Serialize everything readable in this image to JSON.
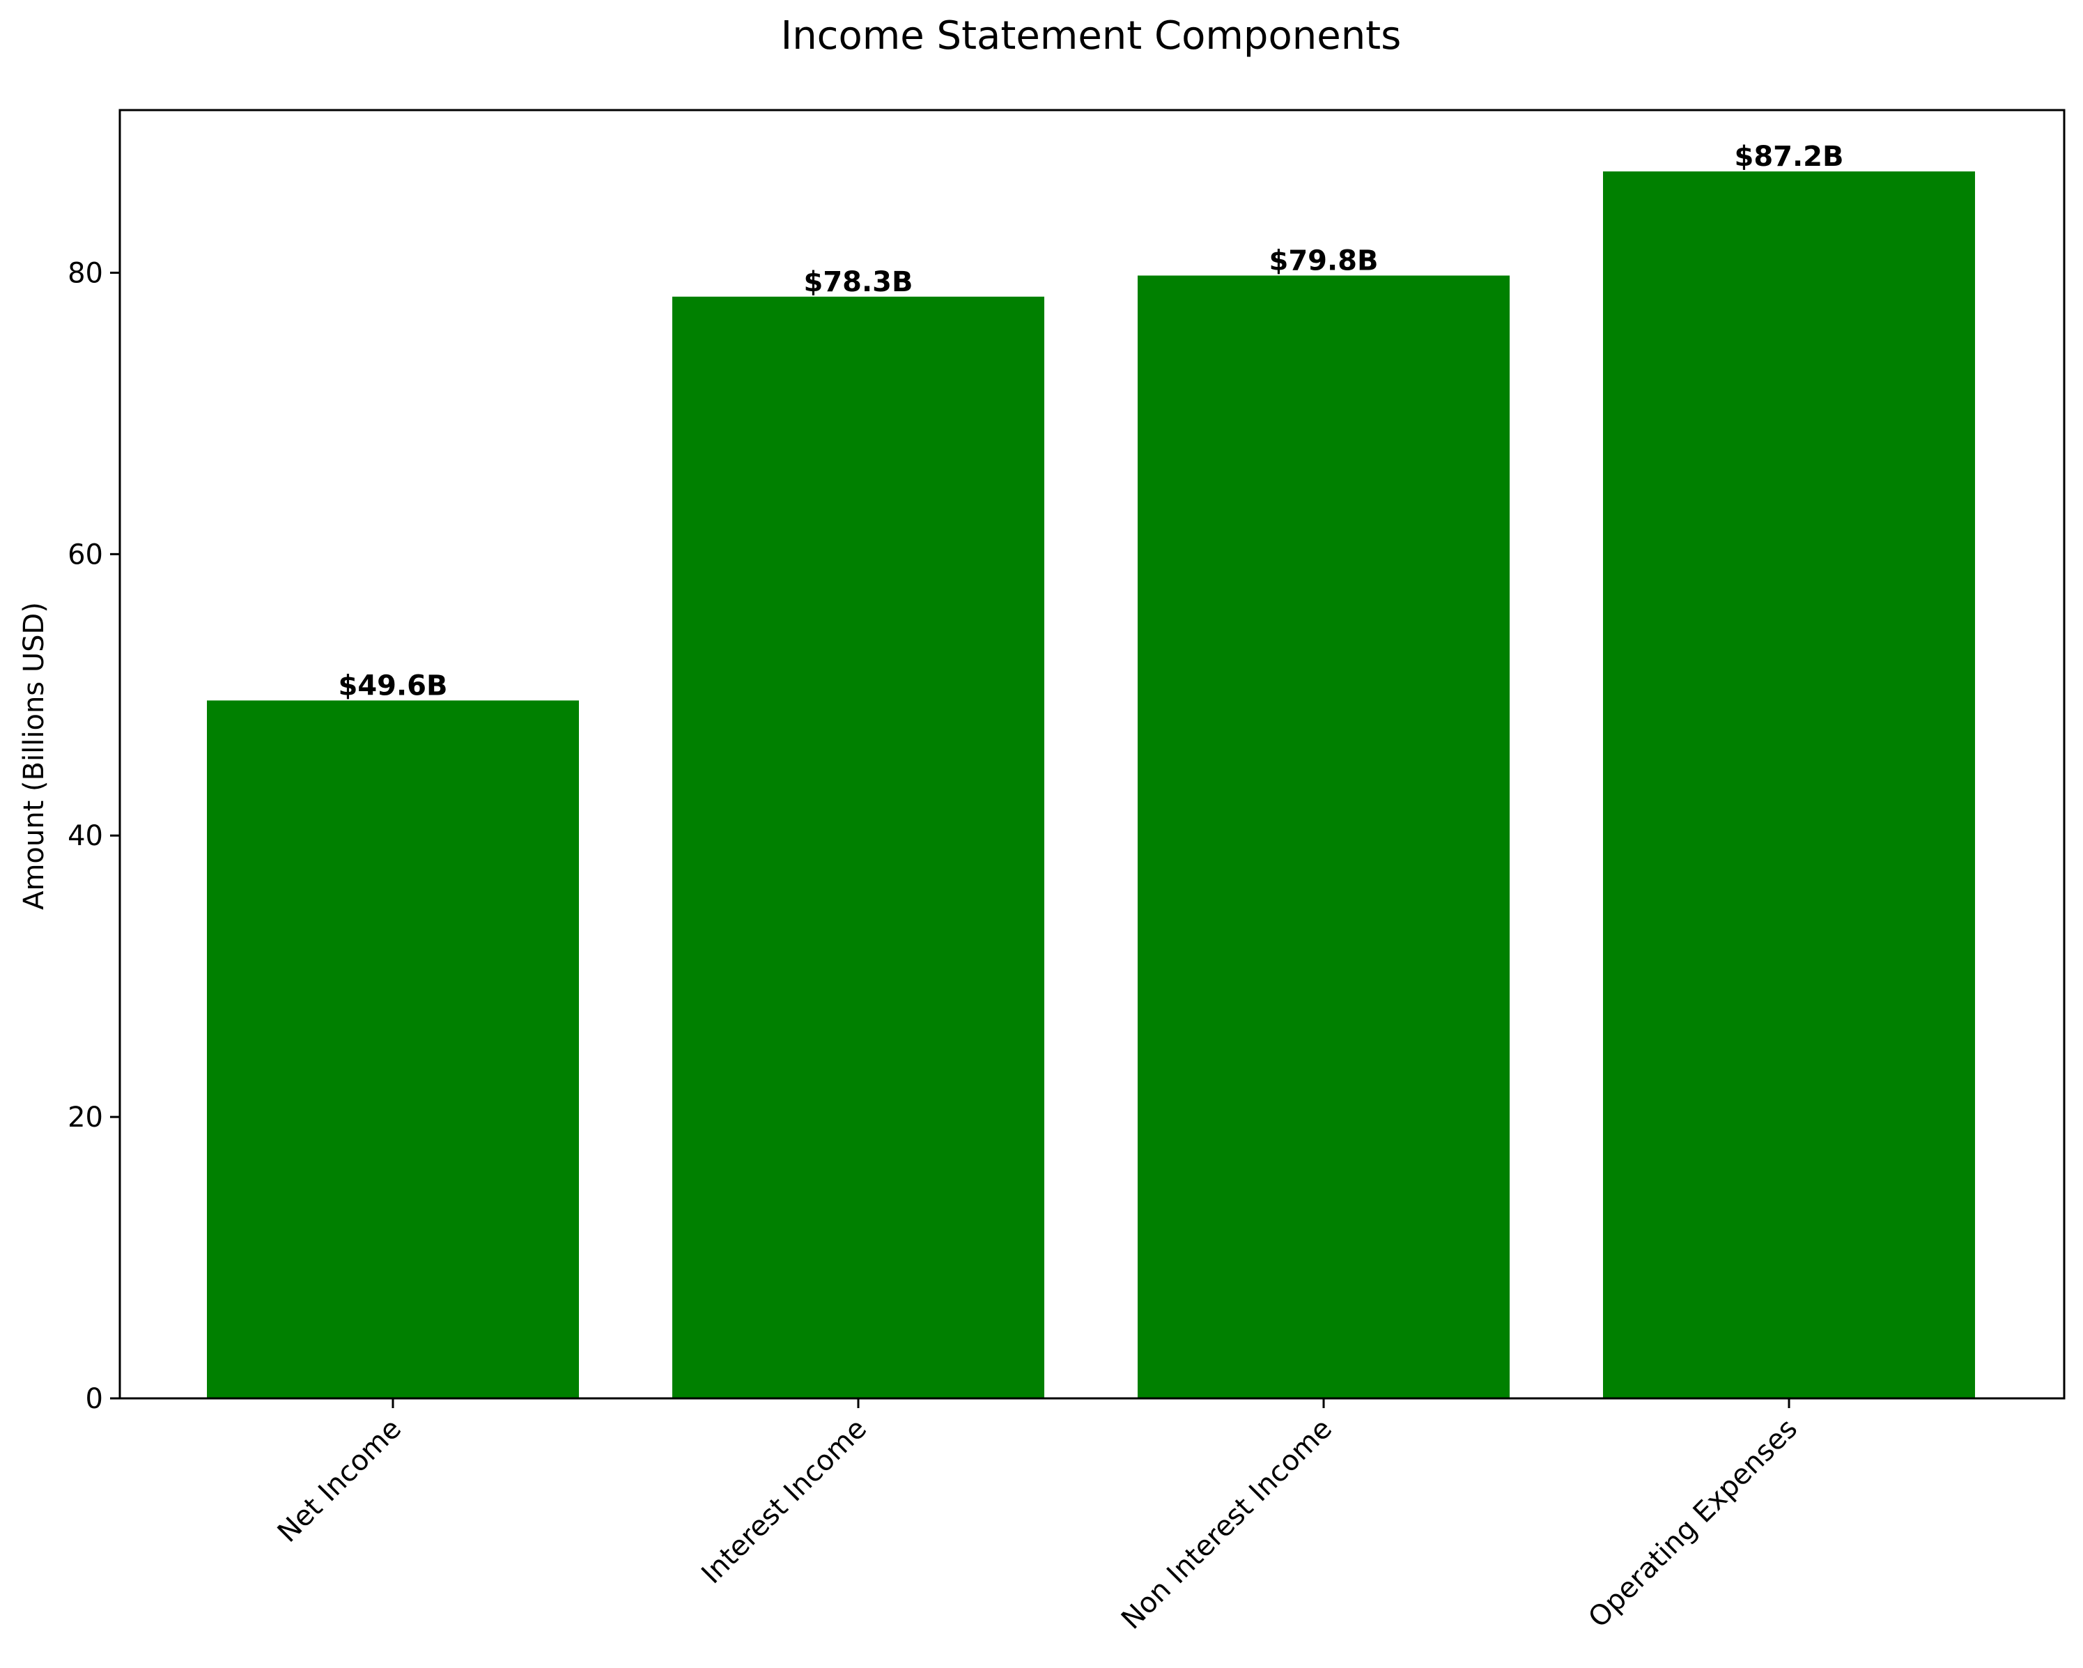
{
  "chart_data": {
    "type": "bar",
    "title": "Income Statement Components",
    "xlabel": "",
    "ylabel": "Amount (Billions USD)",
    "categories": [
      "Net Income",
      "Interest Income",
      "Non Interest Income",
      "Operating Expenses"
    ],
    "values": [
      49.6,
      78.3,
      79.8,
      87.2
    ],
    "value_labels": [
      "$49.6B",
      "$78.3B",
      "$79.8B",
      "$87.2B"
    ],
    "ylim": [
      0,
      91.56
    ],
    "yticks": [
      0,
      20,
      40,
      60,
      80
    ],
    "ytick_labels": [
      "0",
      "20",
      "40",
      "60",
      "80"
    ],
    "bar_color": "#008000",
    "grid": false,
    "legend": "none"
  }
}
